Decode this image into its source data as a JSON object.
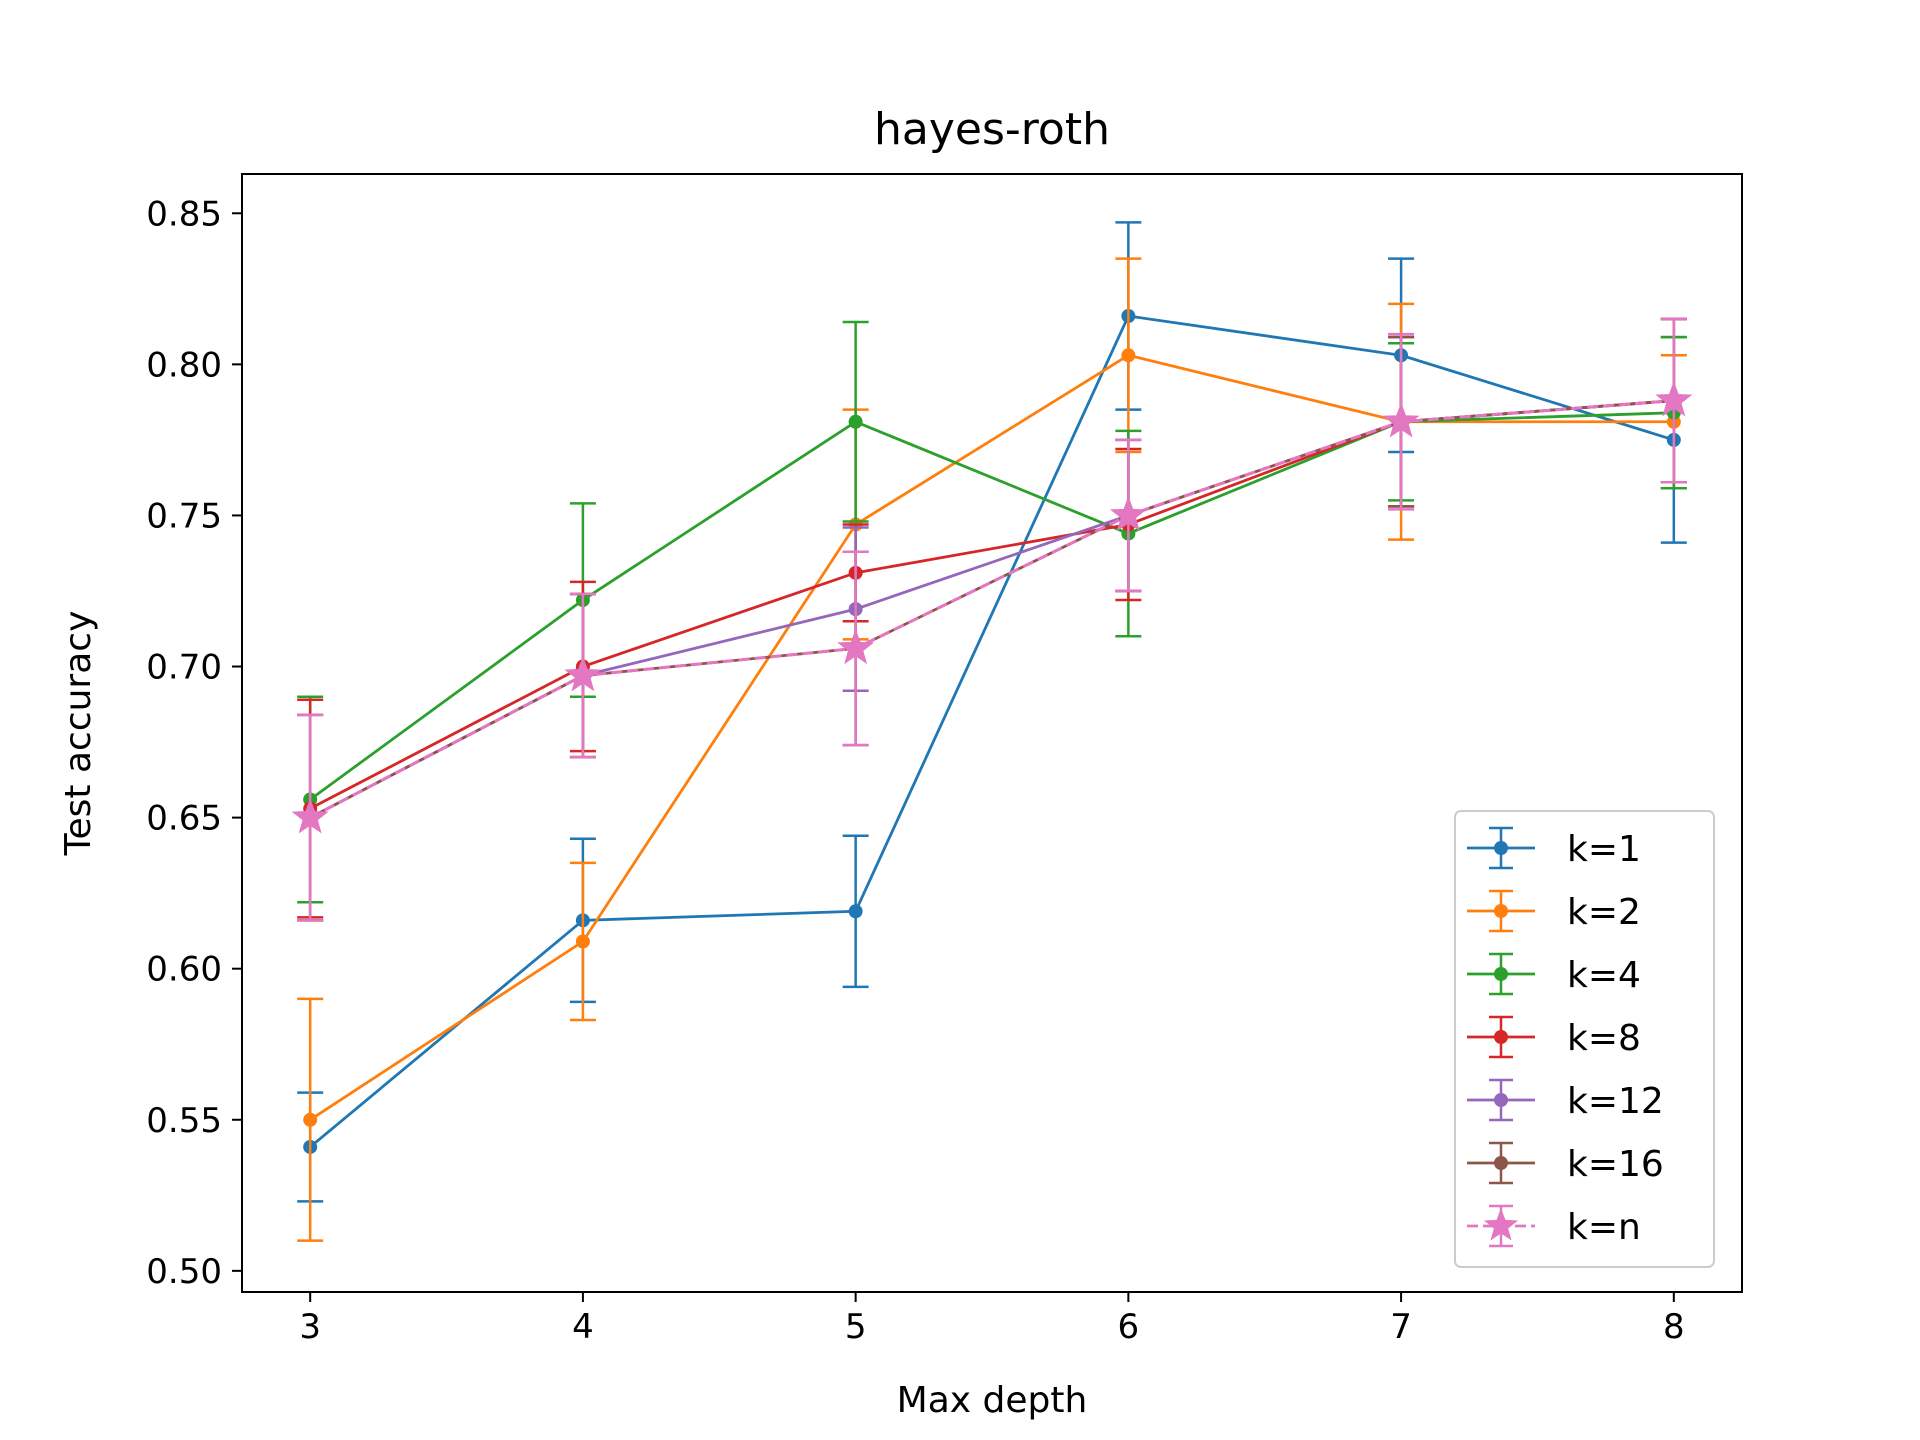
{
  "chart_data": {
    "type": "line",
    "title": "hayes-roth",
    "xlabel": "Max depth",
    "ylabel": "Test accuracy",
    "x": [
      3,
      4,
      5,
      6,
      7,
      8
    ],
    "xlim": [
      2.75,
      8.25
    ],
    "ylim": [
      0.493,
      0.863
    ],
    "xticks": [
      "3",
      "4",
      "5",
      "6",
      "7",
      "8"
    ],
    "yticks": [
      "0.50",
      "0.55",
      "0.60",
      "0.65",
      "0.70",
      "0.75",
      "0.80",
      "0.85"
    ],
    "grid": false,
    "legend_position": "bottom-right",
    "error_bars": true,
    "series": [
      {
        "name": "k=1",
        "color": "#1f77b4",
        "marker": "circle",
        "dashed": false,
        "values": [
          0.541,
          0.616,
          0.619,
          0.816,
          0.803,
          0.775
        ],
        "errors": [
          0.018,
          0.027,
          0.025,
          0.031,
          0.032,
          0.034
        ]
      },
      {
        "name": "k=2",
        "color": "#ff7f0e",
        "marker": "circle",
        "dashed": false,
        "values": [
          0.55,
          0.609,
          0.747,
          0.803,
          0.781,
          0.781
        ],
        "errors": [
          0.04,
          0.026,
          0.038,
          0.032,
          0.039,
          0.022
        ]
      },
      {
        "name": "k=4",
        "color": "#2ca02c",
        "marker": "circle",
        "dashed": false,
        "values": [
          0.656,
          0.722,
          0.781,
          0.744,
          0.781,
          0.784
        ],
        "errors": [
          0.034,
          0.032,
          0.033,
          0.034,
          0.026,
          0.025
        ]
      },
      {
        "name": "k=8",
        "color": "#d62728",
        "marker": "circle",
        "dashed": false,
        "values": [
          0.653,
          0.7,
          0.731,
          0.747,
          0.781,
          0.788
        ],
        "errors": [
          0.036,
          0.028,
          0.016,
          0.025,
          0.028,
          0.027
        ]
      },
      {
        "name": "k=12",
        "color": "#9467bd",
        "marker": "circle",
        "dashed": false,
        "values": [
          0.65,
          0.697,
          0.719,
          0.75,
          0.781,
          0.788
        ],
        "errors": [
          0.034,
          0.027,
          0.027,
          0.025,
          0.028,
          0.027
        ]
      },
      {
        "name": "k=16",
        "color": "#8c564b",
        "marker": "circle",
        "dashed": false,
        "values": [
          0.65,
          0.697,
          0.706,
          0.75,
          0.781,
          0.788
        ],
        "errors": [
          0.034,
          0.027,
          0.032,
          0.025,
          0.028,
          0.027
        ]
      },
      {
        "name": "k=n",
        "color": "#e377c2",
        "marker": "star",
        "dashed": true,
        "values": [
          0.65,
          0.697,
          0.706,
          0.75,
          0.781,
          0.788
        ],
        "errors": [
          0.034,
          0.027,
          0.032,
          0.025,
          0.029,
          0.027
        ]
      }
    ]
  }
}
